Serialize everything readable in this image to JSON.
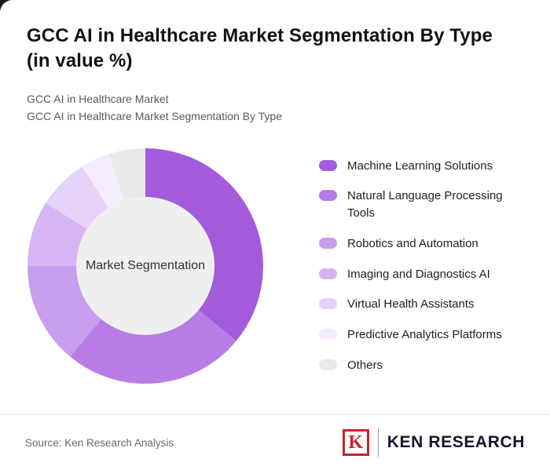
{
  "page": {
    "title_line1": "GCC AI in Healthcare Market Segmentation By Type",
    "title_line2": "(in value %)",
    "subtitle_line1": "GCC AI in Healthcare Market",
    "subtitle_line2": "GCC AI in Healthcare Market Segmentation By Type",
    "source": "Source: Ken Research Analysis"
  },
  "logo": {
    "monogram": "K",
    "brand": "KEN RESEARCH",
    "accent_color": "#C0272D",
    "text_color": "#15152E"
  },
  "chart_data": {
    "type": "pie",
    "donut": true,
    "title": "GCC AI in Healthcare Market Segmentation By Type (in value %)",
    "center_label": "Market Segmentation",
    "start_angle_deg": 0,
    "direction": "clockwise",
    "legend_position": "right",
    "categories": [
      "Machine Learning Solutions",
      "Natural Language Processing Tools",
      "Robotics and Automation",
      "Imaging and Diagnostics AI",
      "Virtual Health Assistants",
      "Predictive Analytics Platforms",
      "Others"
    ],
    "values": [
      36,
      25,
      14,
      9,
      7,
      4,
      5
    ],
    "colors": [
      "#A35BDB",
      "#B77CE6",
      "#C89CEF",
      "#D7B5F5",
      "#E6D2F9",
      "#F4EBFD",
      "#E8E7EA"
    ],
    "hole_color": "#EFEFEF"
  }
}
